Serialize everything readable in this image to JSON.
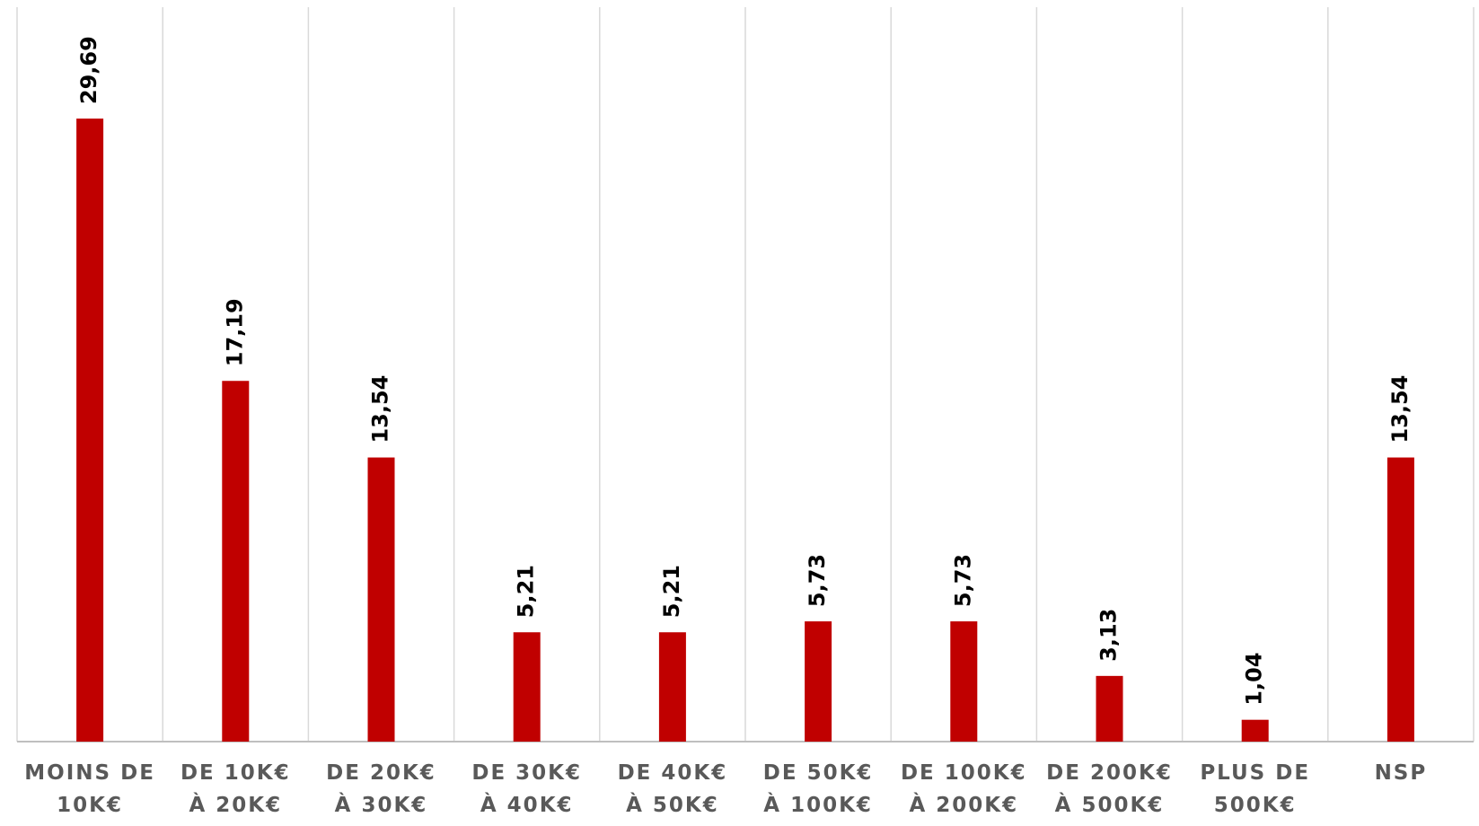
{
  "chart_data": {
    "type": "bar",
    "categories": [
      [
        "MOINS DE",
        "10K€"
      ],
      [
        "DE 10K€",
        "À 20K€"
      ],
      [
        "DE 20K€",
        "À 30K€"
      ],
      [
        "DE 30K€",
        "À 40K€"
      ],
      [
        "DE 40K€",
        "À 50K€"
      ],
      [
        "DE 50K€",
        "À 100K€"
      ],
      [
        "DE 100K€",
        "À 200K€"
      ],
      [
        "DE 200K€",
        "À 500K€"
      ],
      [
        "PLUS DE",
        "500K€"
      ],
      [
        "NSP"
      ]
    ],
    "values": [
      29.69,
      17.19,
      13.54,
      5.21,
      5.21,
      5.73,
      5.73,
      3.13,
      1.04,
      13.54
    ],
    "value_labels": [
      "29,69",
      "17,19",
      "13,54",
      "5,21",
      "5,21",
      "5,73",
      "5,73",
      "3,13",
      "1,04",
      "13,54"
    ],
    "color": "#c00000",
    "ylim": [
      0,
      35
    ]
  }
}
